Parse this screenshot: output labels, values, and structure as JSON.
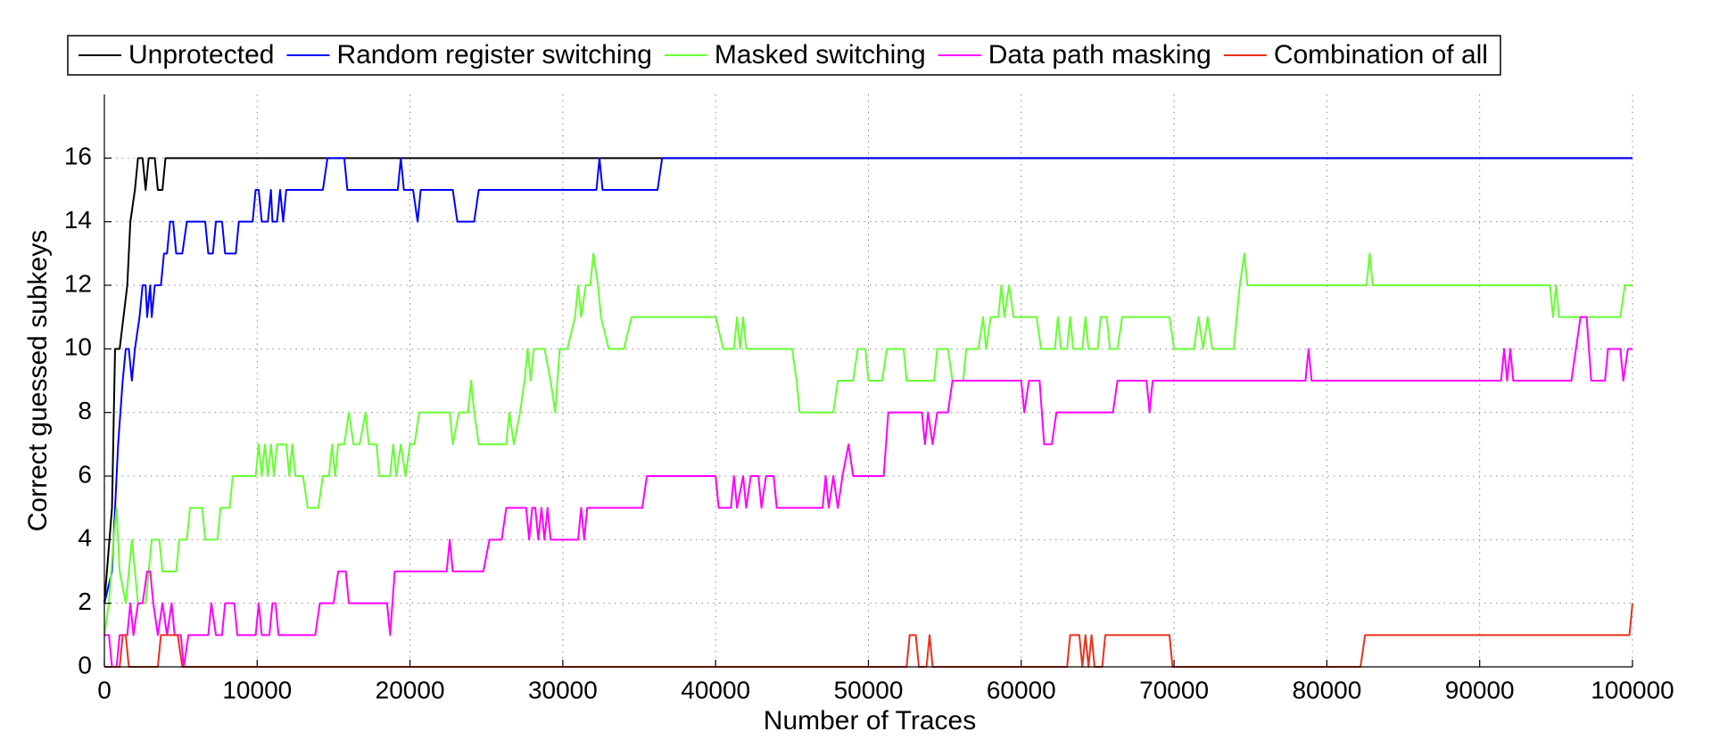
{
  "chart_data": {
    "type": "line",
    "xlabel": "Number of Traces",
    "ylabel": "Correct guessed subkeys",
    "xlim": [
      0,
      100000
    ],
    "xticks": [
      0,
      10000,
      20000,
      30000,
      40000,
      50000,
      60000,
      70000,
      80000,
      90000,
      100000
    ],
    "ylim": [
      0,
      18
    ],
    "yticks": [
      0,
      2,
      4,
      6,
      8,
      10,
      12,
      14,
      16
    ],
    "grid": true,
    "legend": "top",
    "series": [
      {
        "name": "Unprotected",
        "color": "#000000",
        "x": [
          0,
          500,
          700,
          1000,
          1500,
          1700,
          2000,
          2200,
          2500,
          2700,
          2900,
          3300,
          3500,
          3800,
          4000,
          100000
        ],
        "values": [
          2,
          5,
          10,
          10,
          12,
          14,
          15,
          16,
          16,
          15,
          16,
          16,
          15,
          15,
          16,
          16
        ]
      },
      {
        "name": "Random register switching",
        "color": "#0000ff",
        "x": [
          0,
          500,
          700,
          900,
          1200,
          1400,
          1600,
          1800,
          2000,
          2300,
          2500,
          2700,
          2800,
          3000,
          3100,
          3300,
          3700,
          3900,
          4100,
          4300,
          4500,
          4700,
          5100,
          5400,
          6600,
          6800,
          7100,
          7300,
          7700,
          7900,
          8600,
          8800,
          9700,
          9900,
          10100,
          10300,
          10700,
          10900,
          11000,
          11300,
          11500,
          11700,
          11900,
          14300,
          14600,
          15700,
          15900,
          19200,
          19400,
          19600,
          20200,
          20500,
          20700,
          22800,
          23100,
          24200,
          24500,
          32200,
          32400,
          32600,
          36200,
          36500,
          100000
        ],
        "values": [
          2,
          3,
          5,
          7,
          9,
          10,
          10,
          9,
          10,
          11,
          12,
          12,
          11,
          12,
          11,
          12,
          12,
          13,
          13,
          14,
          14,
          13,
          13,
          14,
          14,
          13,
          13,
          14,
          14,
          13,
          13,
          14,
          14,
          15,
          15,
          14,
          14,
          15,
          14,
          14,
          15,
          14,
          15,
          15,
          16,
          16,
          15,
          15,
          16,
          15,
          15,
          14,
          15,
          15,
          14,
          14,
          15,
          15,
          16,
          15,
          15,
          16,
          16
        ]
      },
      {
        "name": "Masked switching",
        "color": "#66ff33",
        "x": [
          0,
          300,
          600,
          800,
          1000,
          1400,
          1600,
          1800,
          2000,
          2200,
          2700,
          2900,
          3100,
          3600,
          3800,
          4700,
          4900,
          5400,
          5600,
          6400,
          6600,
          7400,
          7600,
          8200,
          8400,
          9900,
          10100,
          10300,
          10500,
          10700,
          10900,
          11100,
          11300,
          11900,
          12100,
          12300,
          12500,
          13000,
          13300,
          14000,
          14300,
          14700,
          14900,
          15100,
          15300,
          15700,
          16000,
          16300,
          16700,
          17100,
          17300,
          17800,
          18000,
          18700,
          18900,
          19100,
          19400,
          19700,
          20000,
          20300,
          20600,
          22600,
          22800,
          23200,
          23800,
          24000,
          24200,
          24500,
          26300,
          26500,
          26800,
          27200,
          27500,
          27700,
          27900,
          28100,
          28800,
          29200,
          29500,
          29800,
          30300,
          30800,
          31000,
          31200,
          31500,
          31800,
          32000,
          32300,
          32500,
          33000,
          34000,
          34500,
          40000,
          40500,
          41200,
          41400,
          41600,
          41800,
          42000,
          45000,
          45300,
          45500,
          47700,
          48000,
          49000,
          49300,
          49800,
          50000,
          50900,
          51200,
          52300,
          52500,
          54300,
          54500,
          55200,
          55500,
          56200,
          56400,
          57200,
          57500,
          57700,
          58000,
          58500,
          58700,
          58900,
          59200,
          59500,
          61000,
          61300,
          62200,
          62400,
          62600,
          63000,
          63200,
          63400,
          64000,
          64200,
          64400,
          65000,
          65200,
          65600,
          65800,
          66300,
          66600,
          69700,
          70000,
          71300,
          71600,
          71900,
          72200,
          72500,
          73900,
          74300,
          74600,
          74800,
          82600,
          82800,
          83000,
          94600,
          94800,
          95000,
          95200,
          99200,
          99500,
          100000
        ],
        "values": [
          1,
          2,
          4,
          5,
          3,
          2,
          3,
          4,
          3,
          2,
          2,
          3,
          4,
          4,
          3,
          3,
          4,
          4,
          5,
          5,
          4,
          4,
          5,
          5,
          6,
          6,
          7,
          6,
          7,
          6,
          7,
          6,
          7,
          7,
          6,
          7,
          6,
          6,
          5,
          5,
          6,
          6,
          7,
          6,
          7,
          7,
          8,
          7,
          7,
          8,
          7,
          7,
          6,
          6,
          7,
          6,
          7,
          6,
          7,
          7,
          8,
          8,
          7,
          8,
          8,
          9,
          8,
          7,
          7,
          8,
          7,
          8,
          9,
          10,
          9,
          10,
          10,
          9,
          8,
          10,
          10,
          11,
          12,
          11,
          12,
          12,
          13,
          12,
          11,
          10,
          10,
          11,
          11,
          10,
          10,
          11,
          10,
          11,
          10,
          10,
          9,
          8,
          8,
          9,
          9,
          10,
          10,
          9,
          9,
          10,
          10,
          9,
          9,
          10,
          10,
          9,
          9,
          10,
          10,
          11,
          10,
          11,
          11,
          12,
          11,
          12,
          11,
          11,
          10,
          10,
          11,
          10,
          10,
          11,
          10,
          10,
          11,
          10,
          10,
          11,
          11,
          10,
          10,
          11,
          11,
          10,
          10,
          11,
          10,
          11,
          10,
          10,
          12,
          13,
          12,
          12,
          13,
          12,
          12,
          11,
          12,
          11,
          11,
          12,
          12
        ]
      },
      {
        "name": "Data path masking",
        "color": "#ff00ff",
        "x": [
          0,
          300,
          500,
          800,
          1000,
          1500,
          1700,
          1900,
          2200,
          2500,
          2800,
          3000,
          3200,
          3500,
          3800,
          4100,
          4400,
          4600,
          5000,
          5200,
          5500,
          6800,
          7000,
          7300,
          7700,
          7900,
          8500,
          8700,
          9900,
          10100,
          10300,
          10800,
          11000,
          11200,
          11400,
          13800,
          14100,
          15000,
          15300,
          15800,
          16000,
          18500,
          18700,
          19000,
          22400,
          22600,
          22800,
          24800,
          25200,
          26000,
          26300,
          27600,
          27800,
          28000,
          28200,
          28400,
          28600,
          28800,
          29000,
          29200,
          31000,
          31200,
          31400,
          31600,
          35200,
          35500,
          40000,
          40200,
          41000,
          41200,
          41400,
          41800,
          42000,
          42300,
          42800,
          43000,
          43300,
          43800,
          44000,
          47000,
          47200,
          47400,
          47700,
          48000,
          48300,
          48700,
          49000,
          51000,
          51300,
          53500,
          53700,
          53900,
          54200,
          54500,
          55200,
          55500,
          60000,
          60200,
          60500,
          61200,
          61500,
          62000,
          62300,
          66000,
          66300,
          68200,
          68400,
          68600,
          78600,
          78800,
          79000,
          91400,
          91600,
          91800,
          92000,
          92200,
          96000,
          96300,
          96600,
          97000,
          97300,
          98200,
          98400,
          99200,
          99400,
          99700,
          100000
        ],
        "values": [
          1,
          1,
          0,
          0,
          1,
          1,
          2,
          1,
          2,
          2,
          3,
          3,
          2,
          1,
          2,
          1,
          2,
          1,
          1,
          0,
          1,
          1,
          2,
          1,
          1,
          2,
          2,
          1,
          1,
          2,
          1,
          1,
          2,
          2,
          1,
          1,
          2,
          2,
          3,
          3,
          2,
          2,
          1,
          3,
          3,
          4,
          3,
          3,
          4,
          4,
          5,
          5,
          4,
          5,
          5,
          4,
          5,
          4,
          5,
          4,
          4,
          5,
          4,
          5,
          5,
          6,
          6,
          5,
          5,
          6,
          5,
          6,
          5,
          6,
          6,
          5,
          6,
          6,
          5,
          5,
          6,
          5,
          6,
          5,
          6,
          7,
          6,
          6,
          8,
          8,
          7,
          8,
          7,
          8,
          8,
          9,
          9,
          8,
          9,
          9,
          7,
          7,
          8,
          8,
          9,
          9,
          8,
          9,
          9,
          10,
          9,
          9,
          10,
          9,
          10,
          9,
          9,
          10,
          11,
          11,
          9,
          9,
          10,
          10,
          9,
          10,
          10
        ]
      },
      {
        "name": "Combination of all",
        "color": "#e8321e",
        "x": [
          0,
          1000,
          1200,
          1400,
          1600,
          3500,
          3700,
          4800,
          5100,
          52500,
          52700,
          53100,
          53300,
          53800,
          54000,
          54200,
          63000,
          63200,
          63800,
          64000,
          64200,
          64400,
          64600,
          64800,
          65300,
          65500,
          69700,
          69900,
          82200,
          82500,
          99800,
          100000
        ],
        "values": [
          0,
          0,
          1,
          1,
          0,
          0,
          1,
          1,
          0,
          0,
          1,
          1,
          0,
          0,
          1,
          0,
          0,
          1,
          1,
          0,
          1,
          0,
          1,
          0,
          0,
          1,
          1,
          0,
          0,
          1,
          1,
          2
        ]
      }
    ]
  }
}
